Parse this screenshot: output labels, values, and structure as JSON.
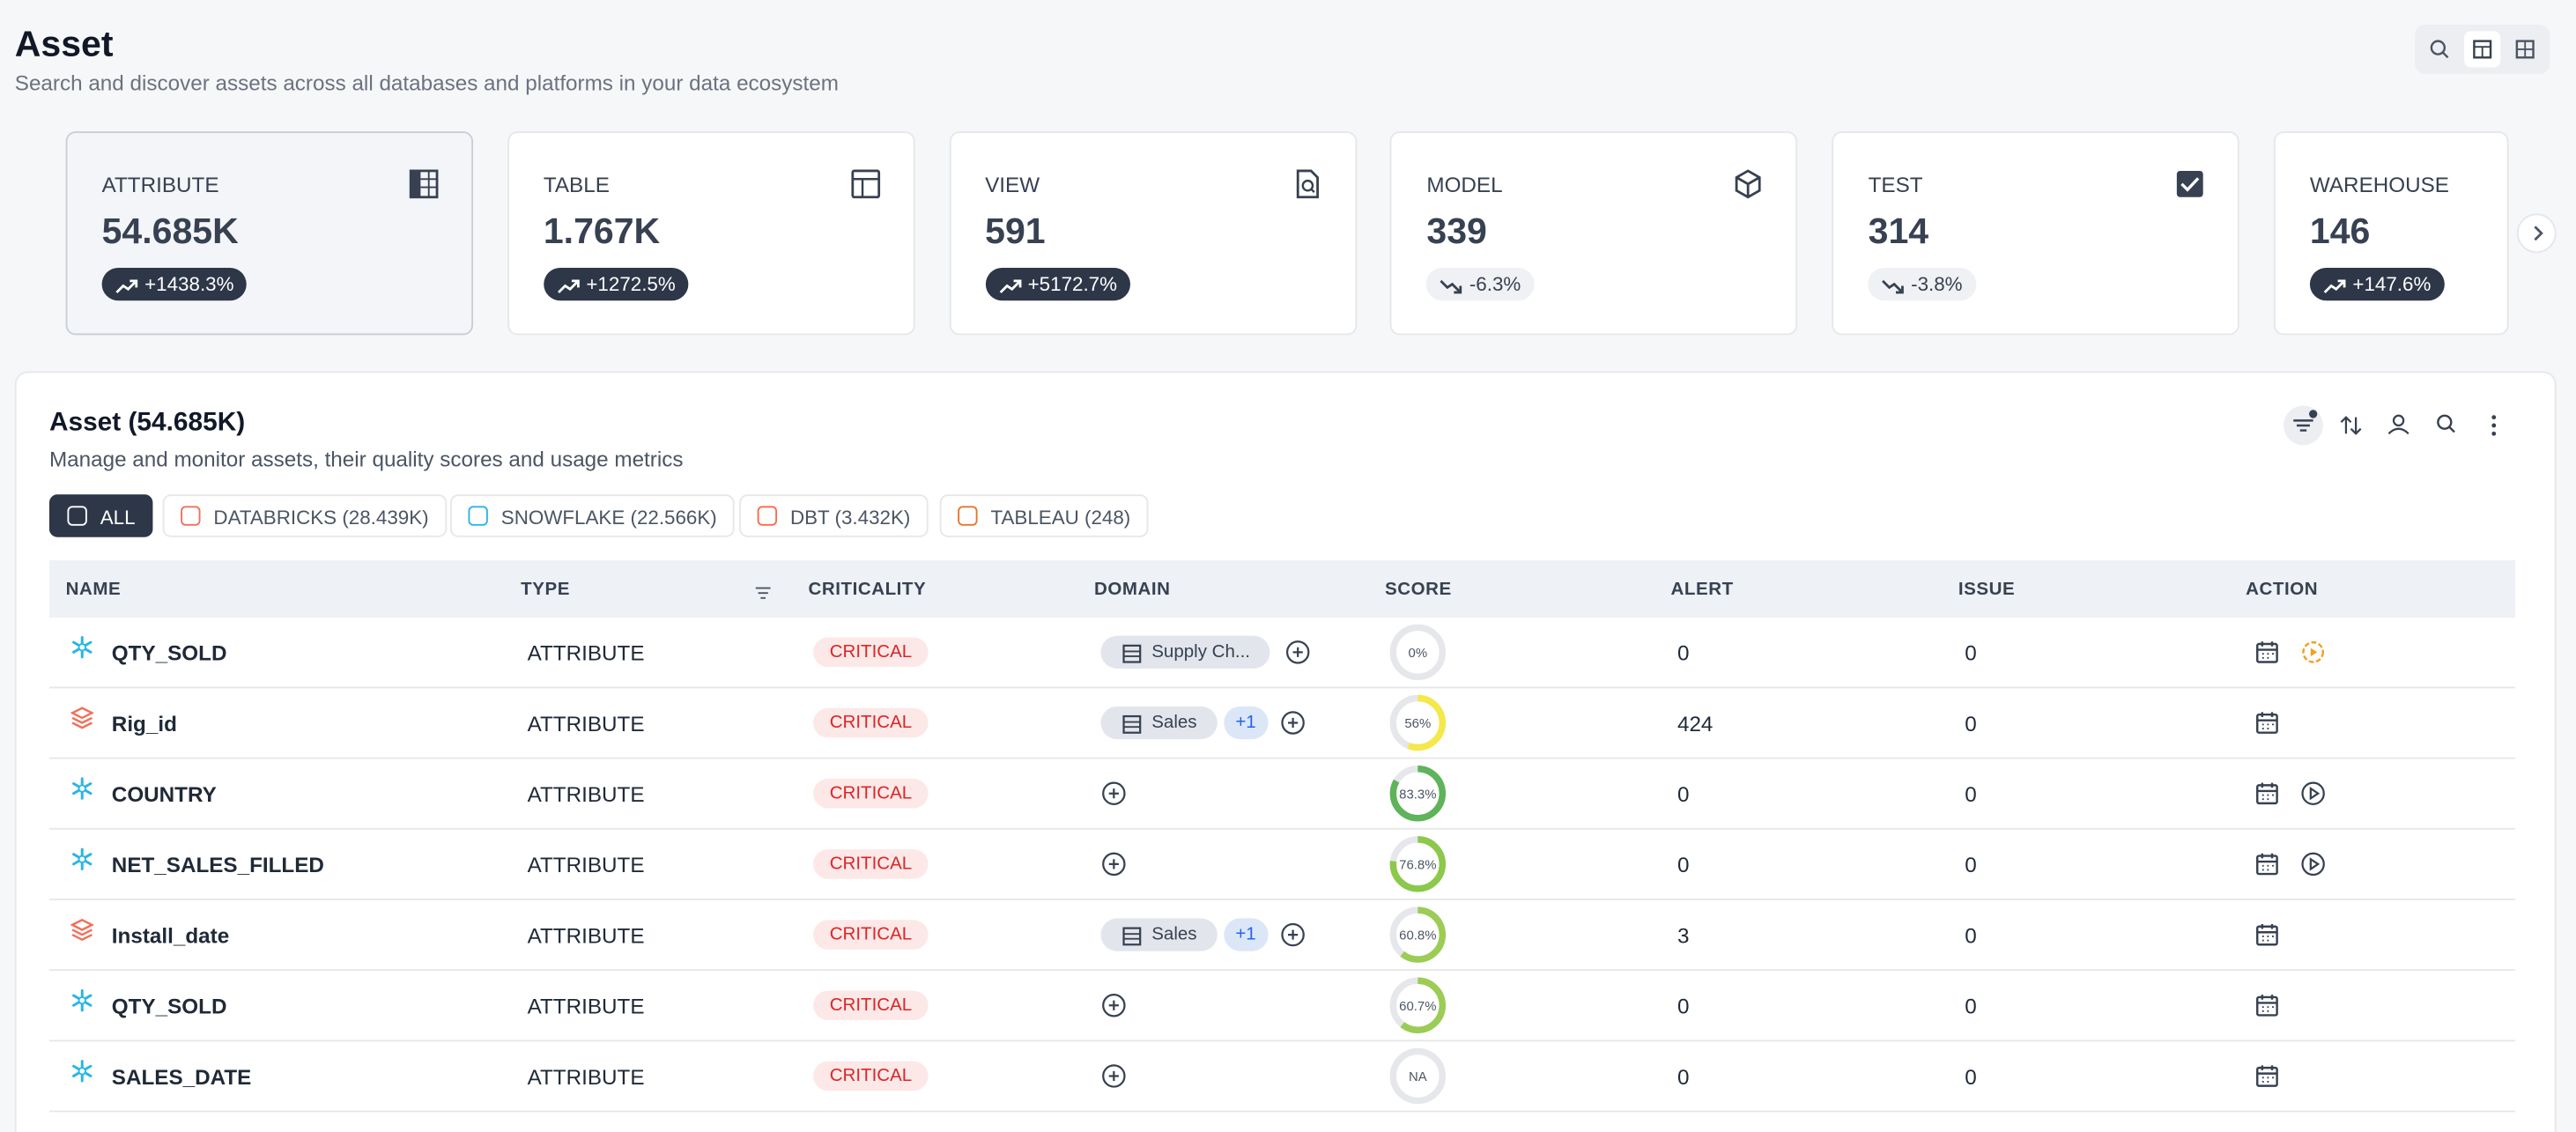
{
  "header": {
    "title": "Asset",
    "subtitle": "Search and discover assets across all databases and platforms in your data ecosystem"
  },
  "cards": [
    {
      "label": "ATTRIBUTE",
      "value": "54.685K",
      "change": "+1438.3%",
      "trend": "up",
      "selected": true
    },
    {
      "label": "TABLE",
      "value": "1.767K",
      "change": "+1272.5%",
      "trend": "up"
    },
    {
      "label": "VIEW",
      "value": "591",
      "change": "+5172.7%",
      "trend": "up"
    },
    {
      "label": "MODEL",
      "value": "339",
      "change": "-6.3%",
      "trend": "down"
    },
    {
      "label": "TEST",
      "value": "314",
      "change": "-3.8%",
      "trend": "down"
    },
    {
      "label": "WAREHOUSE",
      "value": "146",
      "change": "+147.6%",
      "trend": "up"
    }
  ],
  "section": {
    "title": "Asset (54.685K)",
    "subtitle": "Manage and monitor assets, their quality scores and usage metrics"
  },
  "filters": [
    {
      "label": "ALL",
      "color": "#ffffff",
      "active": true
    },
    {
      "label": "DATABRICKS (28.439K)",
      "color": "#f0705a"
    },
    {
      "label": "SNOWFLAKE (22.566K)",
      "color": "#29b5e8"
    },
    {
      "label": "DBT (3.432K)",
      "color": "#ff694a"
    },
    {
      "label": "TABLEAU (248)",
      "color": "#e8762c"
    }
  ],
  "table": {
    "columns": [
      "NAME",
      "TYPE",
      "CRITICALITY",
      "DOMAIN",
      "SCORE",
      "ALERT",
      "ISSUE",
      "ACTION"
    ],
    "rows": [
      {
        "name": "QTY_SOLD",
        "source": "snowflake",
        "type": "ATTRIBUTE",
        "criticality": "CRITICAL",
        "domain": "Supply Ch...",
        "score": 0,
        "score_label": "0%",
        "score_color": "#d1d5db",
        "alert": "0",
        "issue": "0",
        "run": "pending"
      },
      {
        "name": "Rig_id",
        "source": "databricks",
        "type": "ATTRIBUTE",
        "criticality": "CRITICAL",
        "domain": "Sales",
        "domain_extra": "+1",
        "score": 56,
        "score_label": "56%",
        "score_color": "#f5e84a",
        "alert": "424",
        "issue": "0"
      },
      {
        "name": "COUNTRY",
        "source": "snowflake",
        "type": "ATTRIBUTE",
        "criticality": "CRITICAL",
        "score": 83.3,
        "score_label": "83.3%",
        "score_color": "#5fb35a",
        "alert": "0",
        "issue": "0",
        "run": "play"
      },
      {
        "name": "NET_SALES_FILLED",
        "source": "snowflake",
        "type": "ATTRIBUTE",
        "criticality": "CRITICAL",
        "score": 76.8,
        "score_label": "76.8%",
        "score_color": "#8cc84b",
        "alert": "0",
        "issue": "0",
        "run": "play"
      },
      {
        "name": "Install_date",
        "source": "databricks",
        "type": "ATTRIBUTE",
        "criticality": "CRITICAL",
        "domain": "Sales",
        "domain_extra": "+1",
        "score": 60.8,
        "score_label": "60.8%",
        "score_color": "#9ccc55",
        "alert": "3",
        "issue": "0"
      },
      {
        "name": "QTY_SOLD",
        "source": "snowflake",
        "type": "ATTRIBUTE",
        "criticality": "CRITICAL",
        "score": 60.7,
        "score_label": "60.7%",
        "score_color": "#9ccc55",
        "alert": "0",
        "issue": "0"
      },
      {
        "name": "SALES_DATE",
        "source": "snowflake",
        "type": "ATTRIBUTE",
        "criticality": "CRITICAL",
        "score": null,
        "score_label": "NA",
        "score_color": "#d1d5db",
        "alert": "0",
        "issue": "0"
      }
    ]
  }
}
